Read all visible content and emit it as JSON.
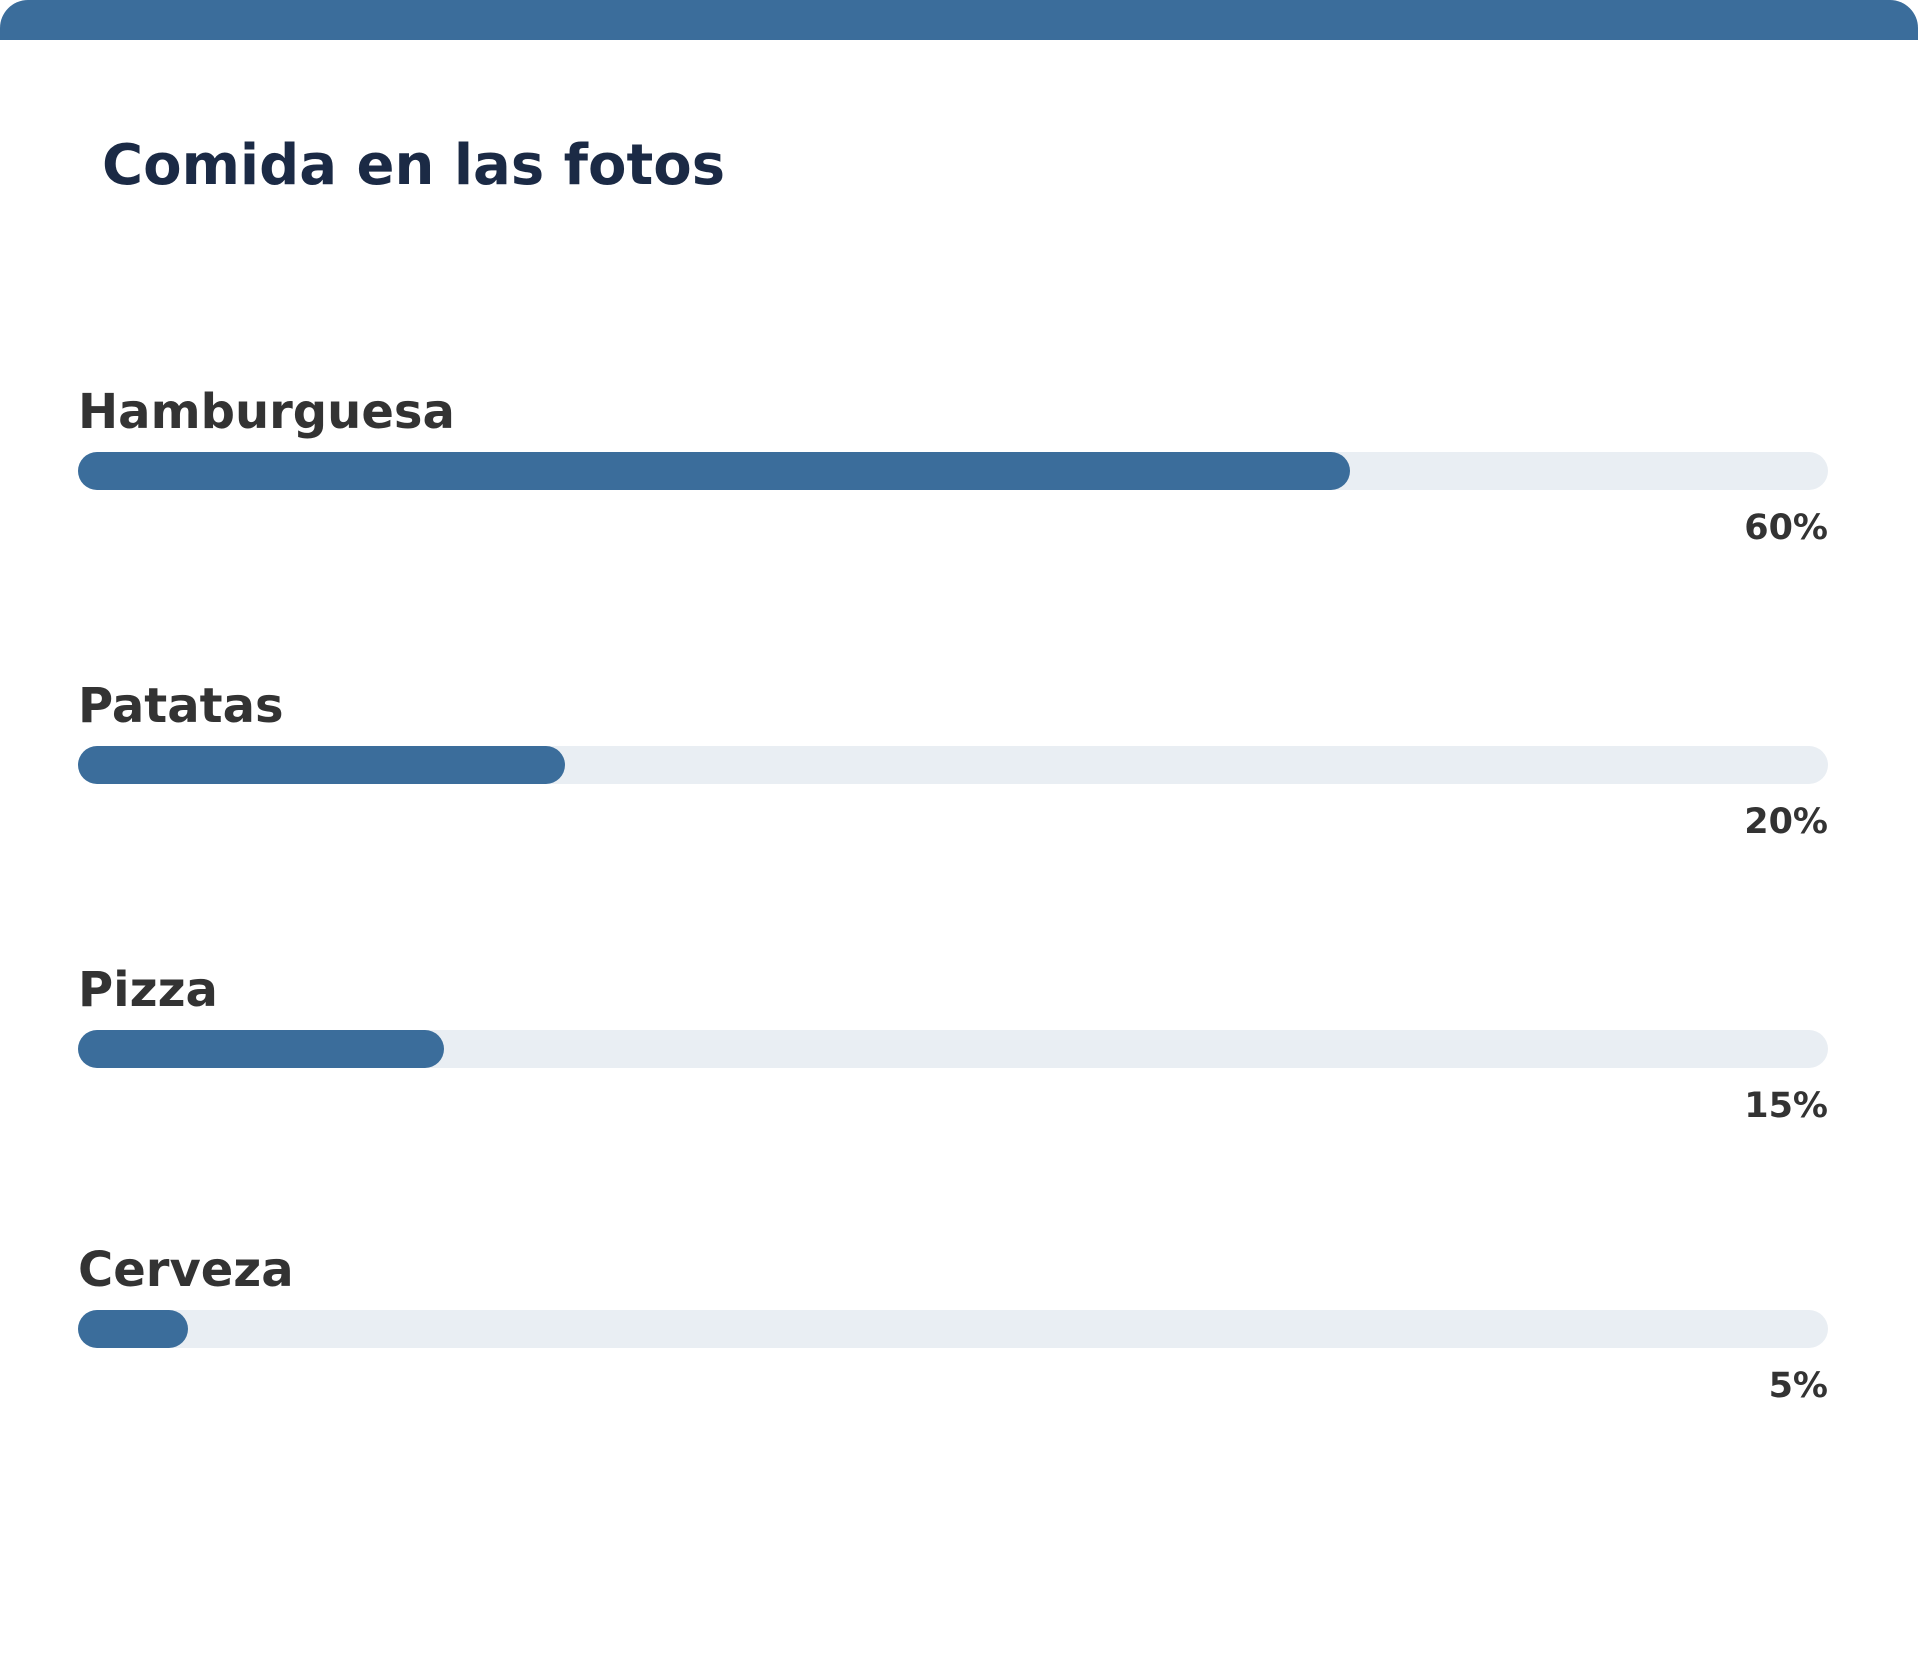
{
  "card": {
    "title": "Comida en las fotos",
    "accent_color": "#3b6d9b",
    "track_color": "#e9eef3"
  },
  "chart_data": {
    "type": "bar",
    "orientation": "horizontal",
    "title": "Comida en las fotos",
    "categories": [
      "Hamburguesa",
      "Patatas",
      "Pizza",
      "Cerveza"
    ],
    "values": [
      60,
      20,
      15,
      5
    ],
    "value_labels": [
      "60%",
      "20%",
      "15%",
      "5%"
    ],
    "fill_fractions": [
      0.727,
      0.278,
      0.209,
      0.063
    ],
    "unit": "%",
    "grid": false,
    "legend": "none"
  }
}
